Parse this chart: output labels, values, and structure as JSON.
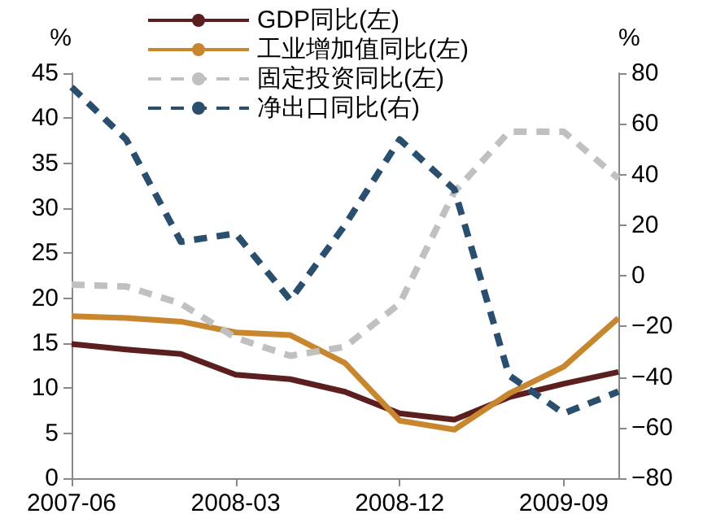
{
  "chart_data": {
    "type": "line",
    "ylabel": "%",
    "y2label": "%",
    "categories": [
      "2007-06",
      null,
      null,
      "2008-03",
      null,
      null,
      "2008-12",
      null,
      null,
      "2009-09",
      null
    ],
    "series": [
      {
        "name": "GDP同比(左)",
        "color": "#5c1f1f",
        "line_style": "solid",
        "values": [
          14.9,
          14.3,
          13.8,
          11.5,
          11.0,
          9.6,
          7.2,
          6.5,
          9.0,
          10.5,
          11.8
        ]
      },
      {
        "name": "工业增加值同比(左)",
        "color": "#c8862f",
        "line_style": "solid",
        "values": [
          18.0,
          17.8,
          17.4,
          16.2,
          15.9,
          12.8,
          6.4,
          5.4,
          9.4,
          12.4,
          17.8
        ]
      },
      {
        "name": "固定投资同比(左)",
        "color": "#c0c0c0",
        "line_style": "dashed",
        "values": [
          21.5,
          21.3,
          19.4,
          15.6,
          13.6,
          14.6,
          19.4,
          31.8,
          38.5,
          38.5,
          33.3
        ]
      },
      {
        "name": "净出口同比(右)",
        "color": "#2a4f6e",
        "line_style": "dashed",
        "axis": "y2",
        "values": [
          74.5,
          53.8,
          13.4,
          16.7,
          -9.6,
          20,
          53.8,
          34.1,
          -39.4,
          -54.4,
          -45.8
        ]
      }
    ],
    "ylim": [
      0,
      45
    ],
    "yticks": [
      0,
      5,
      10,
      15,
      20,
      25,
      30,
      35,
      40,
      45
    ],
    "y2lim": [
      -80,
      80
    ],
    "y2ticks": [
      -80,
      -60,
      -40,
      -20,
      0,
      20,
      40,
      60,
      80
    ],
    "legend": "top",
    "marker": "none",
    "grid": false
  }
}
